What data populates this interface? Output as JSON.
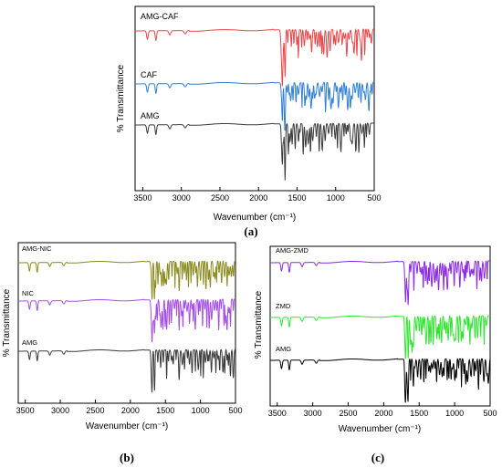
{
  "chart_data": [
    {
      "type": "line",
      "panel_label": "(a)",
      "xlabel": "Wavenumber (cm⁻¹)",
      "ylabel": "% Transmittance",
      "xlim": [
        3600,
        500
      ],
      "xticks": [
        3500,
        3000,
        2500,
        2000,
        1500,
        1000,
        500
      ],
      "yticks_shown": false,
      "series": [
        {
          "name": "AMG-CAF",
          "color": "#e8474a",
          "values": []
        },
        {
          "name": "CAF",
          "color": "#2f7fd4",
          "values": []
        },
        {
          "name": "AMG",
          "color": "#3a3a3a",
          "values": []
        }
      ]
    },
    {
      "type": "line",
      "panel_label": "(b)",
      "xlabel": "Wavenumber (cm⁻¹)",
      "ylabel": "% Transmittance",
      "xlim": [
        3600,
        500
      ],
      "xticks": [
        3500,
        3000,
        2500,
        2000,
        1500,
        1000,
        500
      ],
      "yticks_shown": false,
      "series": [
        {
          "name": "AMG-NIC",
          "color": "#8b8a1e",
          "values": []
        },
        {
          "name": "NIC",
          "color": "#a450e6",
          "values": []
        },
        {
          "name": "AMG",
          "color": "#3a3a3a",
          "values": []
        }
      ]
    },
    {
      "type": "line",
      "panel_label": "(c)",
      "xlabel": "Wavenumber (cm⁻¹)",
      "ylabel": "% Transmittance",
      "xlim": [
        3600,
        500
      ],
      "xticks": [
        3500,
        3000,
        2500,
        2000,
        1500,
        1000,
        500
      ],
      "yticks_shown": false,
      "series": [
        {
          "name": "AMG-ZMD",
          "color": "#8a2be2",
          "values": []
        },
        {
          "name": "ZMD",
          "color": "#2ee62e",
          "values": []
        },
        {
          "name": "AMG",
          "color": "#000000",
          "values": []
        }
      ]
    }
  ]
}
